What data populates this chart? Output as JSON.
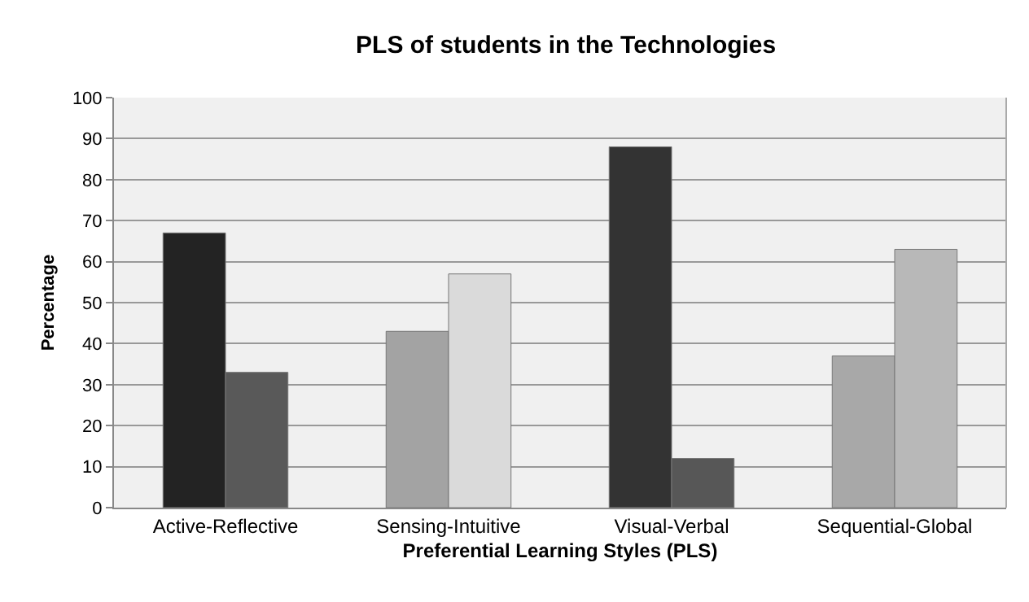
{
  "chart_data": {
    "type": "bar",
    "title": "PLS of students in the Technologies",
    "xlabel": "Preferential Learning Styles (PLS)",
    "ylabel": "Percentage",
    "categories": [
      "Active-Reflective",
      "Sensing-Intuitive",
      "Visual-Verbal",
      "Sequential-Global"
    ],
    "series": [
      {
        "colors": [
          "#232323",
          "#a3a3a3",
          "#333333",
          "#a8a8a8"
        ],
        "values": [
          67,
          43,
          88,
          37
        ]
      },
      {
        "colors": [
          "#595959",
          "#dadada",
          "#575757",
          "#b8b8b8"
        ],
        "values": [
          33,
          57,
          12,
          63
        ]
      }
    ],
    "ylim": [
      0,
      100
    ],
    "yticks": [
      0,
      10,
      20,
      30,
      40,
      50,
      60,
      70,
      80,
      90,
      100
    ],
    "grid": "y"
  }
}
